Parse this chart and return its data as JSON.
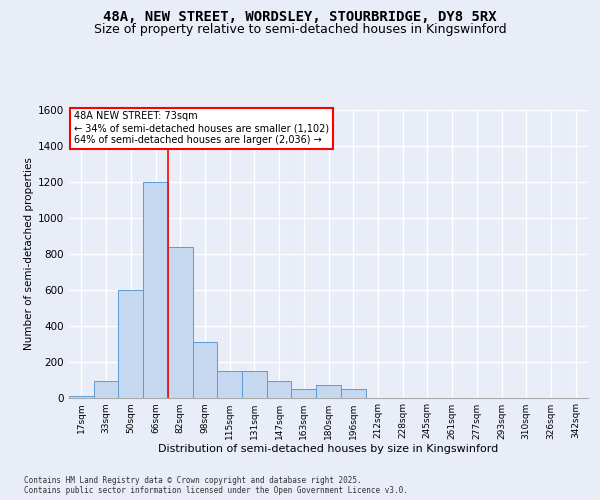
{
  "title1": "48A, NEW STREET, WORDSLEY, STOURBRIDGE, DY8 5RX",
  "title2": "Size of property relative to semi-detached houses in Kingswinford",
  "xlabel": "Distribution of semi-detached houses by size in Kingswinford",
  "ylabel": "Number of semi-detached properties",
  "categories": [
    "17sqm",
    "33sqm",
    "50sqm",
    "66sqm",
    "82sqm",
    "98sqm",
    "115sqm",
    "131sqm",
    "147sqm",
    "163sqm",
    "180sqm",
    "196sqm",
    "212sqm",
    "228sqm",
    "245sqm",
    "261sqm",
    "277sqm",
    "293sqm",
    "310sqm",
    "326sqm",
    "342sqm"
  ],
  "values": [
    10,
    90,
    600,
    1200,
    840,
    310,
    150,
    150,
    90,
    50,
    70,
    50,
    0,
    0,
    0,
    0,
    0,
    0,
    0,
    0,
    0
  ],
  "bar_color": "#c5d8f0",
  "bar_edge_color": "#5b9bd5",
  "redline_index": 3.5,
  "annotation_line1": "48A NEW STREET: 73sqm",
  "annotation_line2": "← 34% of semi-detached houses are smaller (1,102)",
  "annotation_line3": "64% of semi-detached houses are larger (2,036) →",
  "ylim": [
    0,
    1600
  ],
  "yticks": [
    0,
    200,
    400,
    600,
    800,
    1000,
    1200,
    1400,
    1600
  ],
  "footnote1": "Contains HM Land Registry data © Crown copyright and database right 2025.",
  "footnote2": "Contains public sector information licensed under the Open Government Licence v3.0.",
  "background_color": "#e8edf8",
  "grid_color": "#ffffff",
  "title_fontsize": 10,
  "subtitle_fontsize": 9
}
